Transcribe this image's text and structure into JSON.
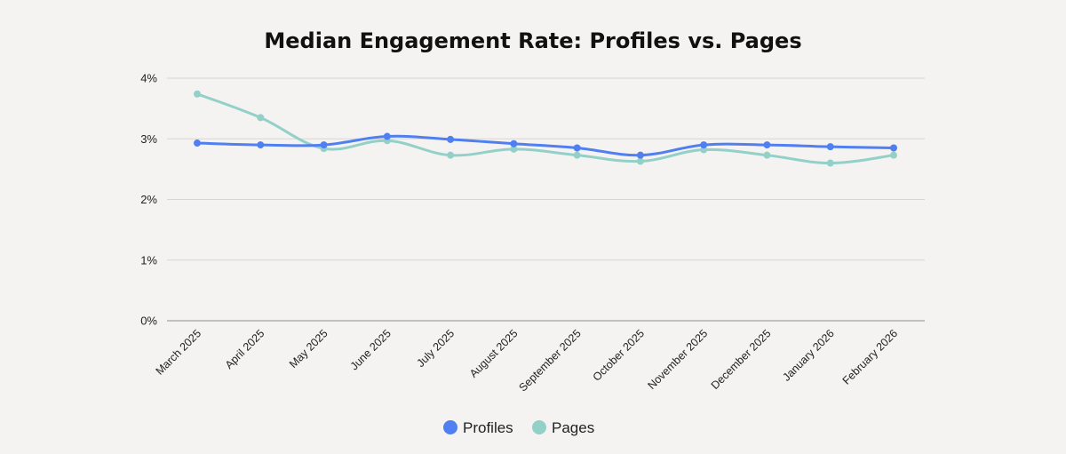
{
  "chart_data": {
    "type": "line",
    "title": "Median Engagement Rate: Profiles vs. Pages",
    "xlabel": "",
    "ylabel": "",
    "categories": [
      "March 2025",
      "April 2025",
      "May 2025",
      "June 2025",
      "July 2025",
      "August 2025",
      "September 2025",
      "October 2025",
      "November 2025",
      "December 2025",
      "January 2026",
      "February 2026"
    ],
    "y_ticks": [
      "0%",
      "1%",
      "2%",
      "3%",
      "4%"
    ],
    "ylim": [
      0,
      4
    ],
    "grid": true,
    "legend_position": "bottom-center",
    "series": [
      {
        "name": "Profiles",
        "color": "#4f7ff0",
        "values": [
          2.93,
          2.9,
          2.9,
          3.04,
          2.99,
          2.92,
          2.85,
          2.73,
          2.9,
          2.9,
          2.87,
          2.85
        ]
      },
      {
        "name": "Pages",
        "color": "#93d0c8",
        "values": [
          3.74,
          3.35,
          2.84,
          2.97,
          2.73,
          2.83,
          2.73,
          2.63,
          2.82,
          2.73,
          2.6,
          2.73
        ]
      }
    ]
  }
}
